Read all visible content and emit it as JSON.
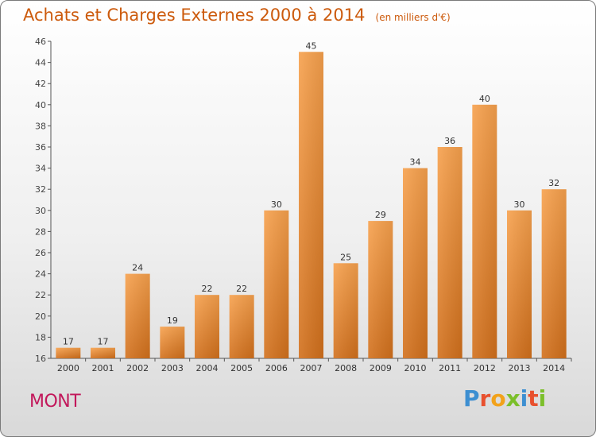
{
  "chart_data": {
    "type": "bar",
    "title": "Achats et Charges Externes 2000 à 2014",
    "subtitle": "(en milliers d'€)",
    "categories": [
      "2000",
      "2001",
      "2002",
      "2003",
      "2004",
      "2005",
      "2006",
      "2007",
      "2008",
      "2009",
      "2010",
      "2011",
      "2012",
      "2013",
      "2014"
    ],
    "values": [
      17,
      17,
      24,
      19,
      22,
      22,
      30,
      45,
      25,
      29,
      34,
      36,
      40,
      30,
      32
    ],
    "ylim": [
      16,
      46
    ],
    "yticks": [
      16,
      18,
      20,
      22,
      24,
      26,
      28,
      30,
      32,
      34,
      36,
      38,
      40,
      42,
      44,
      46
    ],
    "grid": false,
    "bar_color": "#f08a2c"
  },
  "footer": {
    "town": "MONT",
    "brand": "Proxiti"
  }
}
